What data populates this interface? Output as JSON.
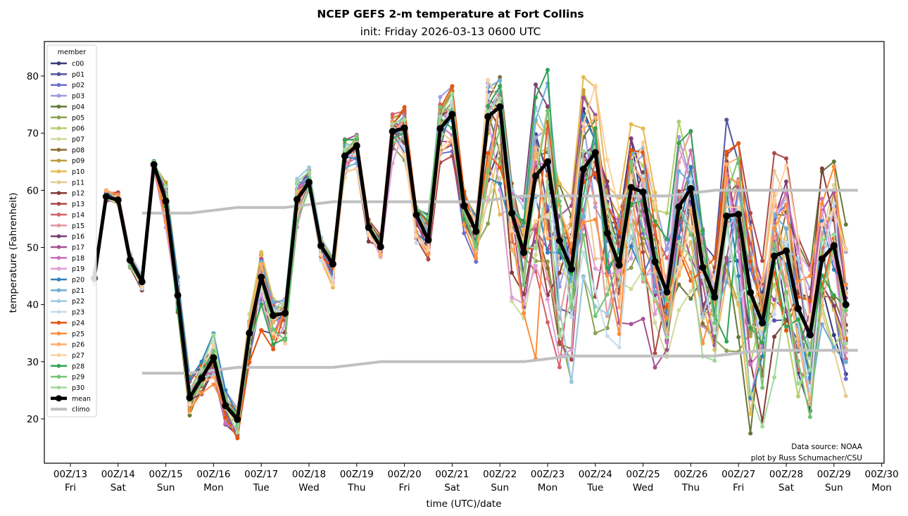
{
  "chart_data": {
    "type": "line",
    "title": "NCEP GEFS 2-m temperature at Fort Collins",
    "subtitle": "init: Friday 2026-03-13 0600 UTC",
    "xlabel": "time (UTC)/date",
    "ylabel": "temperature (Fahrenheit)",
    "ylim": [
      12.5,
      86
    ],
    "xlim_hours_from_00Z13": [
      -18,
      410
    ],
    "grid": false,
    "legend_title": "member",
    "legend_placement": "upper-left",
    "annotation": [
      "Data source: NOAA",
      "plot by Russ Schumacher/CSU"
    ],
    "y_ticks": [
      20,
      30,
      40,
      50,
      60,
      70,
      80
    ],
    "x_ticks": [
      {
        "top": "00Z/13",
        "bottom": "Fri"
      },
      {
        "top": "00Z/14",
        "bottom": "Sat"
      },
      {
        "top": "00Z/15",
        "bottom": "Sun"
      },
      {
        "top": "00Z/16",
        "bottom": "Mon"
      },
      {
        "top": "00Z/17",
        "bottom": "Tue"
      },
      {
        "top": "00Z/18",
        "bottom": "Wed"
      },
      {
        "top": "00Z/19",
        "bottom": "Thu"
      },
      {
        "top": "00Z/20",
        "bottom": "Fri"
      },
      {
        "top": "00Z/21",
        "bottom": "Sat"
      },
      {
        "top": "00Z/22",
        "bottom": "Sun"
      },
      {
        "top": "00Z/23",
        "bottom": "Mon"
      },
      {
        "top": "00Z/24",
        "bottom": "Tue"
      },
      {
        "top": "00Z/25",
        "bottom": "Wed"
      },
      {
        "top": "00Z/26",
        "bottom": "Thu"
      },
      {
        "top": "00Z/27",
        "bottom": "Fri"
      },
      {
        "top": "00Z/28",
        "bottom": "Sat"
      },
      {
        "top": "00Z/29",
        "bottom": "Sun"
      },
      {
        "top": "00Z/30",
        "bottom": "Mon"
      }
    ],
    "time_step_hours": 6,
    "first_time_hours_from_00Z13": 12,
    "members": [
      {
        "name": "c00",
        "color": "#393b79"
      },
      {
        "name": "p01",
        "color": "#5254a3"
      },
      {
        "name": "p02",
        "color": "#6b6ecf"
      },
      {
        "name": "p03",
        "color": "#9c9ede"
      },
      {
        "name": "p04",
        "color": "#637939"
      },
      {
        "name": "p05",
        "color": "#8ca252"
      },
      {
        "name": "p06",
        "color": "#b5cf6b"
      },
      {
        "name": "p07",
        "color": "#cedb9c"
      },
      {
        "name": "p08",
        "color": "#8c6d31"
      },
      {
        "name": "p09",
        "color": "#bd9e39"
      },
      {
        "name": "p10",
        "color": "#e7ba52"
      },
      {
        "name": "p11",
        "color": "#e7cb94"
      },
      {
        "name": "p12",
        "color": "#843c39"
      },
      {
        "name": "p13",
        "color": "#ad494a"
      },
      {
        "name": "p14",
        "color": "#d6616b"
      },
      {
        "name": "p15",
        "color": "#e7969c"
      },
      {
        "name": "p16",
        "color": "#7b4173"
      },
      {
        "name": "p17",
        "color": "#a55194"
      },
      {
        "name": "p18",
        "color": "#ce6dbd"
      },
      {
        "name": "p19",
        "color": "#de9ed6"
      },
      {
        "name": "p20",
        "color": "#3182bd"
      },
      {
        "name": "p21",
        "color": "#6baed6"
      },
      {
        "name": "p22",
        "color": "#9ecae1"
      },
      {
        "name": "p23",
        "color": "#c6dbef"
      },
      {
        "name": "p24",
        "color": "#e6550d"
      },
      {
        "name": "p25",
        "color": "#fd8d3c"
      },
      {
        "name": "p26",
        "color": "#fdae6b"
      },
      {
        "name": "p27",
        "color": "#fdd0a2"
      },
      {
        "name": "p28",
        "color": "#31a354"
      },
      {
        "name": "p29",
        "color": "#74c476"
      },
      {
        "name": "p30",
        "color": "#a1d99b"
      }
    ],
    "mean": {
      "name": "mean",
      "color": "#000000",
      "values": [
        44.6,
        58.9,
        58.3,
        47.8,
        44.0,
        64.5,
        58.1,
        41.6,
        23.7,
        27.1,
        30.7,
        22.3,
        19.9,
        35.0,
        44.8,
        38.1,
        38.5,
        58.4,
        61.4,
        50.3,
        47.1,
        66.0,
        67.8,
        53.5,
        50.1,
        70.3,
        70.9,
        55.7,
        51.3,
        70.8,
        73.3,
        57.3,
        52.8,
        72.9,
        74.6,
        56.0,
        49.1,
        62.5,
        65.0,
        51.2,
        46.2,
        63.7,
        66.6,
        52.5,
        46.9,
        60.5,
        59.7,
        47.5,
        42.2,
        57.1,
        60.3,
        46.5,
        41.3,
        55.5,
        55.8,
        42.1,
        36.8,
        48.5,
        49.4,
        39.3,
        34.7,
        48.0,
        50.3,
        40.0
      ]
    },
    "spread": {
      "description": "Approximate ensemble spread (min/max across members) at each time",
      "min": [
        43.5,
        58.0,
        57.5,
        46.5,
        42.5,
        63.5,
        53.5,
        37.5,
        19.0,
        23.0,
        25.0,
        18.0,
        15.5,
        29.5,
        35.5,
        31.5,
        32.0,
        52.5,
        60.0,
        47.5,
        43.0,
        61.0,
        63.5,
        50.5,
        47.5,
        64.5,
        64.5,
        50.5,
        47.5,
        64.5,
        66.0,
        52.5,
        47.5,
        50.0,
        50.5,
        37.0,
        31.5,
        30.5,
        34.0,
        27.0,
        24.5,
        44.0,
        35.0,
        34.5,
        32.5,
        36.0,
        37.5,
        29.0,
        29.5,
        39.0,
        38.5,
        22.0,
        29.0,
        27.0,
        28.5,
        17.0,
        17.0,
        24.0,
        29.0,
        21.5,
        19.0,
        31.0,
        31.0,
        24.0
      ],
      "max": [
        46.0,
        60.0,
        60.0,
        49.5,
        45.5,
        65.5,
        63.0,
        45.0,
        27.5,
        30.0,
        35.0,
        25.5,
        23.0,
        39.0,
        50.0,
        41.0,
        41.5,
        62.0,
        64.0,
        52.0,
        48.5,
        69.5,
        70.5,
        55.5,
        54.0,
        74.0,
        75.5,
        58.5,
        56.5,
        76.5,
        78.5,
        60.5,
        56.5,
        80.0,
        80.5,
        62.0,
        59.0,
        78.5,
        82.5,
        66.0,
        61.0,
        80.0,
        79.5,
        67.0,
        61.0,
        75.5,
        74.0,
        60.0,
        56.0,
        72.0,
        72.0,
        58.5,
        53.0,
        72.5,
        68.5,
        56.0,
        50.0,
        66.5,
        67.0,
        53.0,
        48.0,
        67.0,
        66.5,
        54.0
      ]
    },
    "climo": {
      "name": "climo",
      "color": "#c0c0c0",
      "times_hours_from_00Z13": [
        36,
        60,
        84,
        108,
        132,
        156,
        180,
        204,
        228,
        252,
        276,
        300,
        324,
        348,
        372,
        396
      ],
      "high": [
        56,
        56,
        57,
        57,
        58,
        58,
        58,
        58,
        59,
        59,
        59,
        59,
        60,
        60,
        60,
        60
      ],
      "low": [
        28,
        28,
        29,
        29,
        29,
        30,
        30,
        30,
        30,
        31,
        31,
        31,
        31,
        32,
        32,
        32
      ]
    }
  }
}
